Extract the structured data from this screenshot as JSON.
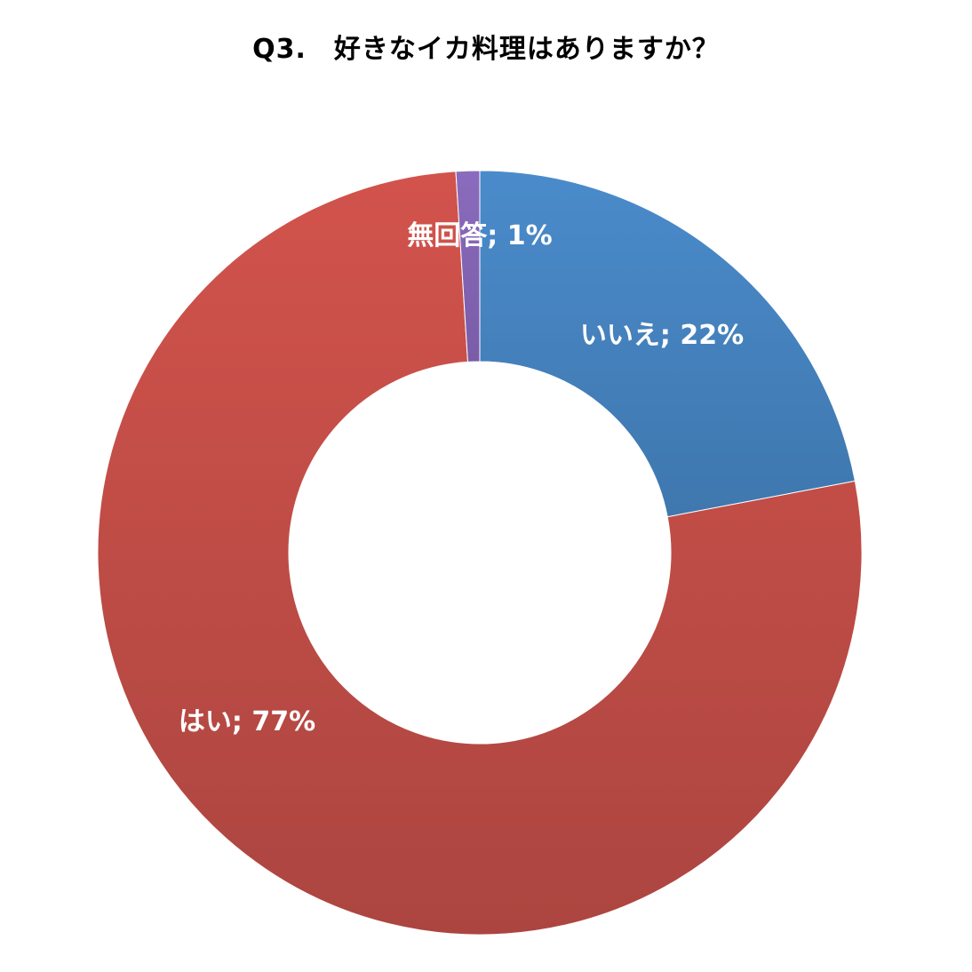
{
  "chart_data": {
    "type": "pie",
    "title": "Q3.　好きなイカ料理はありますか？",
    "start_angle_deg": 0,
    "slices": [
      {
        "name": "いいえ",
        "value": 22,
        "label": "いいえ; 22%",
        "color": "#4a8bcb",
        "color_dark": "#3f77ae"
      },
      {
        "name": "はい",
        "value": 77,
        "label": "はい; 77%",
        "color": "#d2534c",
        "color_dark": "#ac4540"
      },
      {
        "name": "無回答",
        "value": 1,
        "label": "無回答; 1%",
        "color": "#8a6bbd",
        "color_dark": "#7a5ca8"
      }
    ]
  }
}
